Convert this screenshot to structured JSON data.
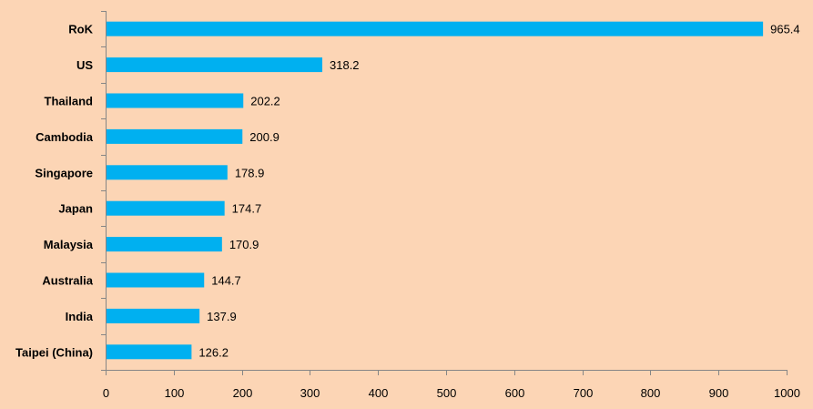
{
  "chart_data": {
    "type": "bar",
    "orientation": "horizontal",
    "categories": [
      "RoK",
      "US",
      "Thailand",
      "Cambodia",
      "Singapore",
      "Japan",
      "Malaysia",
      "Australia",
      "India",
      "Taipei (China)"
    ],
    "values": [
      965.4,
      318.2,
      202.2,
      200.9,
      178.9,
      174.7,
      170.9,
      144.7,
      137.9,
      126.2
    ],
    "value_labels": [
      "965.4",
      "318.2",
      "202.2",
      "200.9",
      "178.9",
      "174.7",
      "170.9",
      "144.7",
      "137.9",
      "126.2"
    ],
    "xlim": [
      0,
      1000
    ],
    "x_ticks": [
      "0",
      "100",
      "200",
      "300",
      "400",
      "500",
      "600",
      "700",
      "800",
      "900",
      "1000"
    ],
    "title": "",
    "xlabel": "",
    "ylabel": "",
    "grid": false,
    "colors": {
      "bar": "#00b0f0",
      "background": "#fcd5b5",
      "axis": "#868686"
    }
  }
}
